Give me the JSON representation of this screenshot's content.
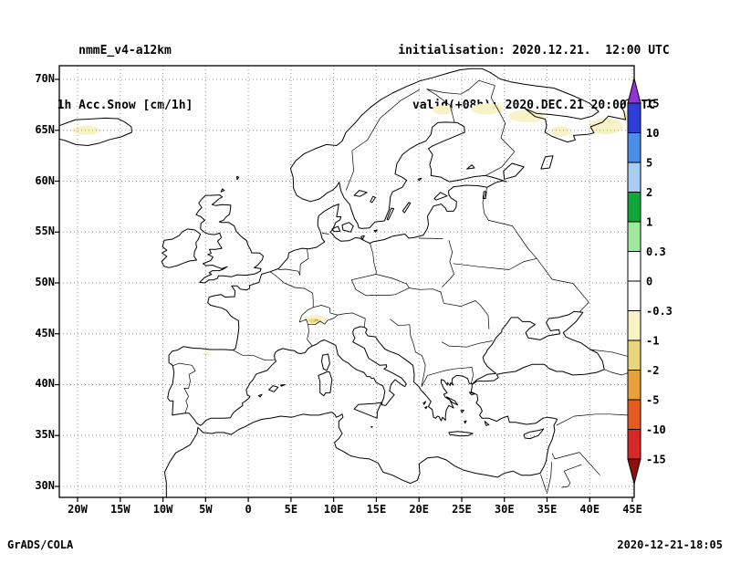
{
  "header": {
    "model_name": "nmmE_v4-a12km",
    "variable": "1h Acc.Snow [cm/1h]",
    "initialisation": "initialisation: 2020.12.21.  12:00 UTC",
    "valid": "valid(+08h): 2020.DEC.21 20:00 UTC"
  },
  "map": {
    "lat_tick_labels": [
      "70N",
      "65N",
      "60N",
      "55N",
      "50N",
      "45N",
      "40N",
      "35N",
      "30N"
    ],
    "lat_tick_values": [
      70,
      65,
      60,
      55,
      50,
      45,
      40,
      35,
      30
    ],
    "lon_tick_labels": [
      "20W",
      "15W",
      "10W",
      "5W",
      "0",
      "5E",
      "10E",
      "15E",
      "20E",
      "25E",
      "30E",
      "35E",
      "40E",
      "45E"
    ],
    "lon_tick_values": [
      -20,
      -15,
      -10,
      -5,
      0,
      5,
      10,
      15,
      20,
      25,
      30,
      35,
      40,
      45
    ],
    "extent": {
      "lon_min": -22.14,
      "lon_max": 45.21,
      "lat_min": 28.92,
      "lat_max": 71.35
    },
    "grid_color": "#9a9a9a",
    "coast_color": "#000000"
  },
  "palette": {
    "paleyellow": "#f7f3c6",
    "khaki": "#e9d67c",
    "orange": "#e8a03a"
  },
  "snow_patches": [
    {
      "lon": -19.0,
      "lat": 65.0,
      "rlon": 1.6,
      "rlat": 0.45,
      "color": "paleyellow"
    },
    {
      "lon": 22.8,
      "lat": 67.0,
      "rlon": 1.2,
      "rlat": 0.45,
      "color": "paleyellow"
    },
    {
      "lon": 28.0,
      "lat": 67.1,
      "rlon": 1.9,
      "rlat": 0.55,
      "color": "paleyellow"
    },
    {
      "lon": 32.6,
      "lat": 66.4,
      "rlon": 2.1,
      "rlat": 0.6,
      "color": "paleyellow"
    },
    {
      "lon": 36.6,
      "lat": 64.9,
      "rlon": 1.2,
      "rlat": 0.5,
      "color": "paleyellow"
    },
    {
      "lon": 41.9,
      "lat": 65.4,
      "rlon": 2.0,
      "rlat": 0.8,
      "color": "paleyellow"
    },
    {
      "lon": 44.6,
      "lat": 66.4,
      "rlon": 0.9,
      "rlat": 0.5,
      "color": "paleyellow"
    },
    {
      "lon": 7.8,
      "lat": 46.4,
      "rlon": 1.3,
      "rlat": 0.45,
      "color": "paleyellow"
    },
    {
      "lon": 7.6,
      "lat": 46.3,
      "rlon": 0.55,
      "rlat": 0.2,
      "color": "khaki"
    },
    {
      "lon": 8.0,
      "lat": 46.35,
      "rlon": 0.22,
      "rlat": 0.1,
      "color": "orange"
    },
    {
      "lon": -4.9,
      "lat": 43.0,
      "rlon": 0.45,
      "rlat": 0.18,
      "color": "paleyellow"
    }
  ],
  "colorbar": {
    "tick_labels": [
      "15",
      "10",
      "5",
      "2",
      "1",
      "0.3",
      "0",
      "-0.3",
      "-1",
      "-2",
      "-5",
      "-10",
      "-15"
    ],
    "arrow_top_color": "#9234d8",
    "arrow_bottom_color": "#8e1010",
    "segment_colors": [
      "#2d3fd8",
      "#4a8ee8",
      "#a9cdf2",
      "#0fa63a",
      "#9fe89f",
      "#ffffff",
      "#ffffff",
      "#f7f3c6",
      "#e9d67c",
      "#e8a03a",
      "#e35b1e",
      "#d82727"
    ]
  },
  "footer": {
    "credit": "GrADS/COLA",
    "timestamp": "2020-12-21-18:05"
  }
}
